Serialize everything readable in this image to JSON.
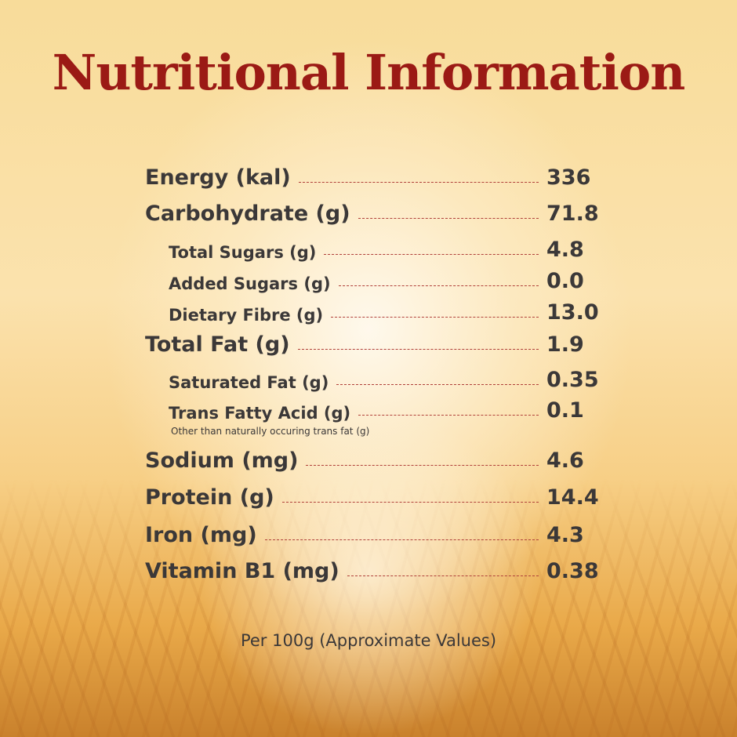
{
  "title": "Nutritional Information",
  "rows": [
    {
      "label": "Energy (kal)",
      "value": "336"
    },
    {
      "label": "Carbohydrate (g)",
      "value": "71.8"
    },
    {
      "label": "Total Sugars (g)",
      "value": "4.8"
    },
    {
      "label": "Added Sugars (g)",
      "value": "0.0"
    },
    {
      "label": "Dietary Fibre (g)",
      "value": "13.0"
    },
    {
      "label": "Total Fat (g)",
      "value": "1.9"
    },
    {
      "label": "Saturated Fat (g)",
      "value": "0.35"
    },
    {
      "label": "Trans Fatty Acid (g)",
      "value": "0.1"
    },
    {
      "label": "Sodium (mg)",
      "value": "4.6"
    },
    {
      "label": "Protein (g)",
      "value": "14.4"
    },
    {
      "label": "Iron (mg)",
      "value": "4.3"
    },
    {
      "label": "Vitamin B1 (mg)",
      "value": "0.38"
    }
  ],
  "trans_fat_note": "Other than naturally occuring trans fat (g)",
  "footer": "Per 100g (Approximate Values)",
  "colors": {
    "title": "#9b1a15",
    "text": "#3b3838",
    "dash": "#b0403a"
  }
}
